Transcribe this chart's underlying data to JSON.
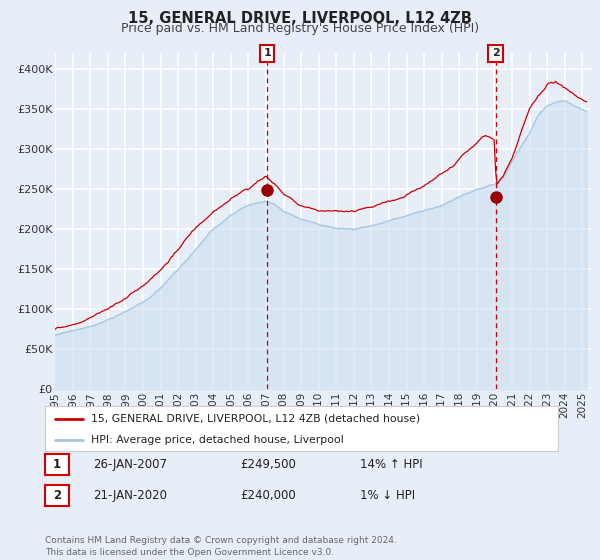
{
  "title": "15, GENERAL DRIVE, LIVERPOOL, L12 4ZB",
  "subtitle": "Price paid vs. HM Land Registry's House Price Index (HPI)",
  "title_fontsize": 10.5,
  "subtitle_fontsize": 9,
  "bg_color": "#e8eef7",
  "plot_bg_color": "#e8eef7",
  "grid_color": "#ffffff",
  "ylim": [
    0,
    420000
  ],
  "xlim_start": 1995.0,
  "xlim_end": 2025.5,
  "ylabel_ticks": [
    0,
    50000,
    100000,
    150000,
    200000,
    250000,
    300000,
    350000,
    400000
  ],
  "ylabel_labels": [
    "£0",
    "£50K",
    "£100K",
    "£150K",
    "£200K",
    "£250K",
    "£300K",
    "£350K",
    "£400K"
  ],
  "xticks": [
    1995,
    1996,
    1997,
    1998,
    1999,
    2000,
    2001,
    2002,
    2003,
    2004,
    2005,
    2006,
    2007,
    2008,
    2009,
    2010,
    2011,
    2012,
    2013,
    2014,
    2015,
    2016,
    2017,
    2018,
    2019,
    2020,
    2021,
    2022,
    2023,
    2024,
    2025
  ],
  "hpi_color": "#a8c4e0",
  "hpi_fill_color": "#c8dcf0",
  "price_color": "#cc0000",
  "marker_color": "#990000",
  "vline_color": "#cc0000",
  "sale1_x": 2007.07,
  "sale1_y": 249500,
  "sale2_x": 2020.07,
  "sale2_y": 240000,
  "legend_label_price": "15, GENERAL DRIVE, LIVERPOOL, L12 4ZB (detached house)",
  "legend_label_hpi": "HPI: Average price, detached house, Liverpool",
  "table_row1": [
    "1",
    "26-JAN-2007",
    "£249,500",
    "14% ↑ HPI"
  ],
  "table_row2": [
    "2",
    "21-JAN-2020",
    "£240,000",
    "1% ↓ HPI"
  ],
  "footnote": "Contains HM Land Registry data © Crown copyright and database right 2024.\nThis data is licensed under the Open Government Licence v3.0."
}
